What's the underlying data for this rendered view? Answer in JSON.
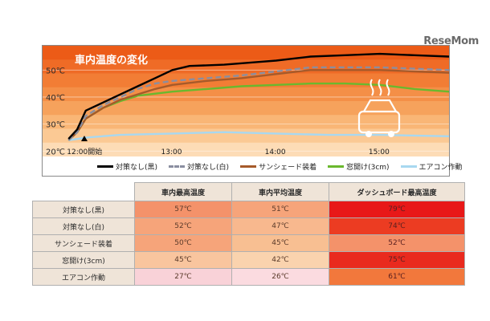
{
  "logo_text": "ReseMom",
  "chart_data": {
    "type": "line",
    "title": "車内温度の変化",
    "ylim": [
      18,
      59
    ],
    "y_ticks": [
      20,
      30,
      40,
      50
    ],
    "y_tick_labels": [
      "20℃",
      "30℃",
      "40℃",
      "50℃"
    ],
    "x_ticks": [
      0,
      60,
      120,
      180
    ],
    "x_tick_labels": [
      "12:00開始",
      "13:00",
      "14:00",
      "15:00"
    ],
    "xlim": [
      -15,
      220
    ],
    "background_bands": [
      "#ec5b17",
      "#ef6b26",
      "#f27d35",
      "#f48f47",
      "#f6a25c",
      "#f9b676",
      "#fbc994",
      "#fddcb6"
    ],
    "series": [
      {
        "name": "対策なし(黒)",
        "color": "#000000",
        "dash": "solid",
        "points": [
          [
            0,
            24.5
          ],
          [
            5,
            28
          ],
          [
            10,
            35
          ],
          [
            20,
            38
          ],
          [
            30,
            41
          ],
          [
            40,
            44
          ],
          [
            50,
            47
          ],
          [
            60,
            50
          ],
          [
            70,
            51.5
          ],
          [
            90,
            52
          ],
          [
            110,
            53
          ],
          [
            120,
            53.5
          ],
          [
            140,
            55
          ],
          [
            160,
            55.5
          ],
          [
            180,
            56
          ],
          [
            200,
            55.5
          ],
          [
            220,
            55
          ]
        ]
      },
      {
        "name": "対策なし(白)",
        "color": "#8a8ea0",
        "dash": "dashed",
        "points": [
          [
            0,
            24
          ],
          [
            5,
            27
          ],
          [
            10,
            33
          ],
          [
            20,
            37
          ],
          [
            30,
            40
          ],
          [
            40,
            43
          ],
          [
            50,
            45
          ],
          [
            60,
            46
          ],
          [
            80,
            47
          ],
          [
            100,
            48
          ],
          [
            120,
            49.5
          ],
          [
            140,
            51
          ],
          [
            160,
            51
          ],
          [
            180,
            51
          ],
          [
            200,
            50.5
          ],
          [
            220,
            50
          ]
        ]
      },
      {
        "name": "サンシェード装着",
        "color": "#a65a2a",
        "dash": "solid",
        "points": [
          [
            0,
            24
          ],
          [
            5,
            27
          ],
          [
            10,
            32
          ],
          [
            20,
            36
          ],
          [
            30,
            39
          ],
          [
            40,
            41
          ],
          [
            50,
            43
          ],
          [
            60,
            44.5
          ],
          [
            80,
            46
          ],
          [
            100,
            47
          ],
          [
            120,
            48.5
          ],
          [
            140,
            50
          ],
          [
            160,
            50
          ],
          [
            180,
            50
          ],
          [
            200,
            49.5
          ],
          [
            220,
            49
          ]
        ]
      },
      {
        "name": "窓開け(3cm)",
        "color": "#6ab82e",
        "dash": "solid",
        "points": [
          [
            0,
            24
          ],
          [
            5,
            27
          ],
          [
            10,
            32
          ],
          [
            20,
            36
          ],
          [
            30,
            38.5
          ],
          [
            40,
            40.5
          ],
          [
            60,
            42
          ],
          [
            80,
            43
          ],
          [
            100,
            44
          ],
          [
            120,
            44.5
          ],
          [
            140,
            45
          ],
          [
            160,
            45
          ],
          [
            180,
            44.5
          ],
          [
            200,
            43
          ],
          [
            220,
            42
          ]
        ]
      },
      {
        "name": "エアコン作動",
        "color": "#a8d8f0",
        "dash": "solid",
        "points": [
          [
            0,
            24
          ],
          [
            10,
            25
          ],
          [
            30,
            26
          ],
          [
            60,
            26.5
          ],
          [
            90,
            27
          ],
          [
            120,
            26.5
          ],
          [
            150,
            26
          ],
          [
            180,
            26
          ],
          [
            220,
            25.5
          ]
        ]
      }
    ]
  },
  "table": {
    "headers": [
      "車内最高温度",
      "車内平均温度",
      "ダッシュボード最高温度"
    ],
    "rows": [
      {
        "label": "対策なし(黒)",
        "values": [
          "57℃",
          "51℃",
          "79℃"
        ],
        "colors": [
          "#f4926a",
          "#f6a47a",
          "#e81818"
        ]
      },
      {
        "label": "対策なし(白)",
        "values": [
          "52℃",
          "47℃",
          "74℃"
        ],
        "colors": [
          "#f6a47a",
          "#f8b88e",
          "#ec3c22"
        ]
      },
      {
        "label": "サンシェード装着",
        "values": [
          "50℃",
          "45℃",
          "52℃"
        ],
        "colors": [
          "#f6a47a",
          "#f8bf92",
          "#f4926a"
        ]
      },
      {
        "label": "窓開け(3cm)",
        "values": [
          "45℃",
          "42℃",
          "75℃"
        ],
        "colors": [
          "#f9c59e",
          "#fad3ae",
          "#e92a1e"
        ]
      },
      {
        "label": "エアコン作動",
        "values": [
          "27℃",
          "26℃",
          "61℃"
        ],
        "colors": [
          "#f9d2d8",
          "#fbdbe0",
          "#f2783c"
        ]
      }
    ]
  }
}
